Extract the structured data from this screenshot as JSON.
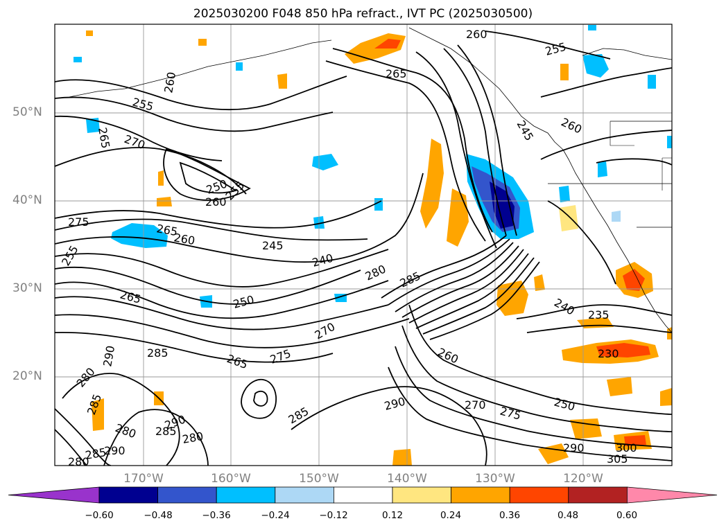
{
  "title": "2025030200 F048 850 hPa refract., IVT PC (2025030500)",
  "lat_labels": [
    "50°N",
    "40°N",
    "30°N",
    "20°N"
  ],
  "lon_labels": [
    "170°W",
    "160°W",
    "150°W",
    "140°W",
    "130°W",
    "120°W"
  ],
  "contour_labels": [
    "260",
    "255",
    "260",
    "265",
    "255",
    "260",
    "265",
    "270",
    "250",
    "255",
    "260",
    "275",
    "265",
    "260",
    "245",
    "255",
    "240",
    "250",
    "265",
    "280",
    "285",
    "245",
    "240",
    "235",
    "230",
    "270",
    "275",
    "265",
    "285",
    "290",
    "280",
    "285",
    "260",
    "290",
    "270",
    "275",
    "250",
    "280",
    "285",
    "290",
    "280",
    "285",
    "290",
    "305",
    "285",
    "280",
    "290",
    "300"
  ],
  "colorbar": {
    "ticks": [
      "−0.60",
      "−0.48",
      "−0.36",
      "−0.24",
      "−0.12",
      "0.12",
      "0.24",
      "0.36",
      "0.48",
      "0.60"
    ],
    "colors": [
      "#9933cc",
      "#000090",
      "#3355cc",
      "#00bfff",
      "#add8f5",
      "#ffffff",
      "#ffe680",
      "#ffa500",
      "#ff4500",
      "#b22222",
      "#ff88aa"
    ]
  },
  "colors": {
    "positive_mid": "#ffa500",
    "positive_high": "#ff4500",
    "negative_mid": "#00bfff",
    "negative_high": "#000090",
    "contour": "#000000",
    "grid": "#999999"
  }
}
